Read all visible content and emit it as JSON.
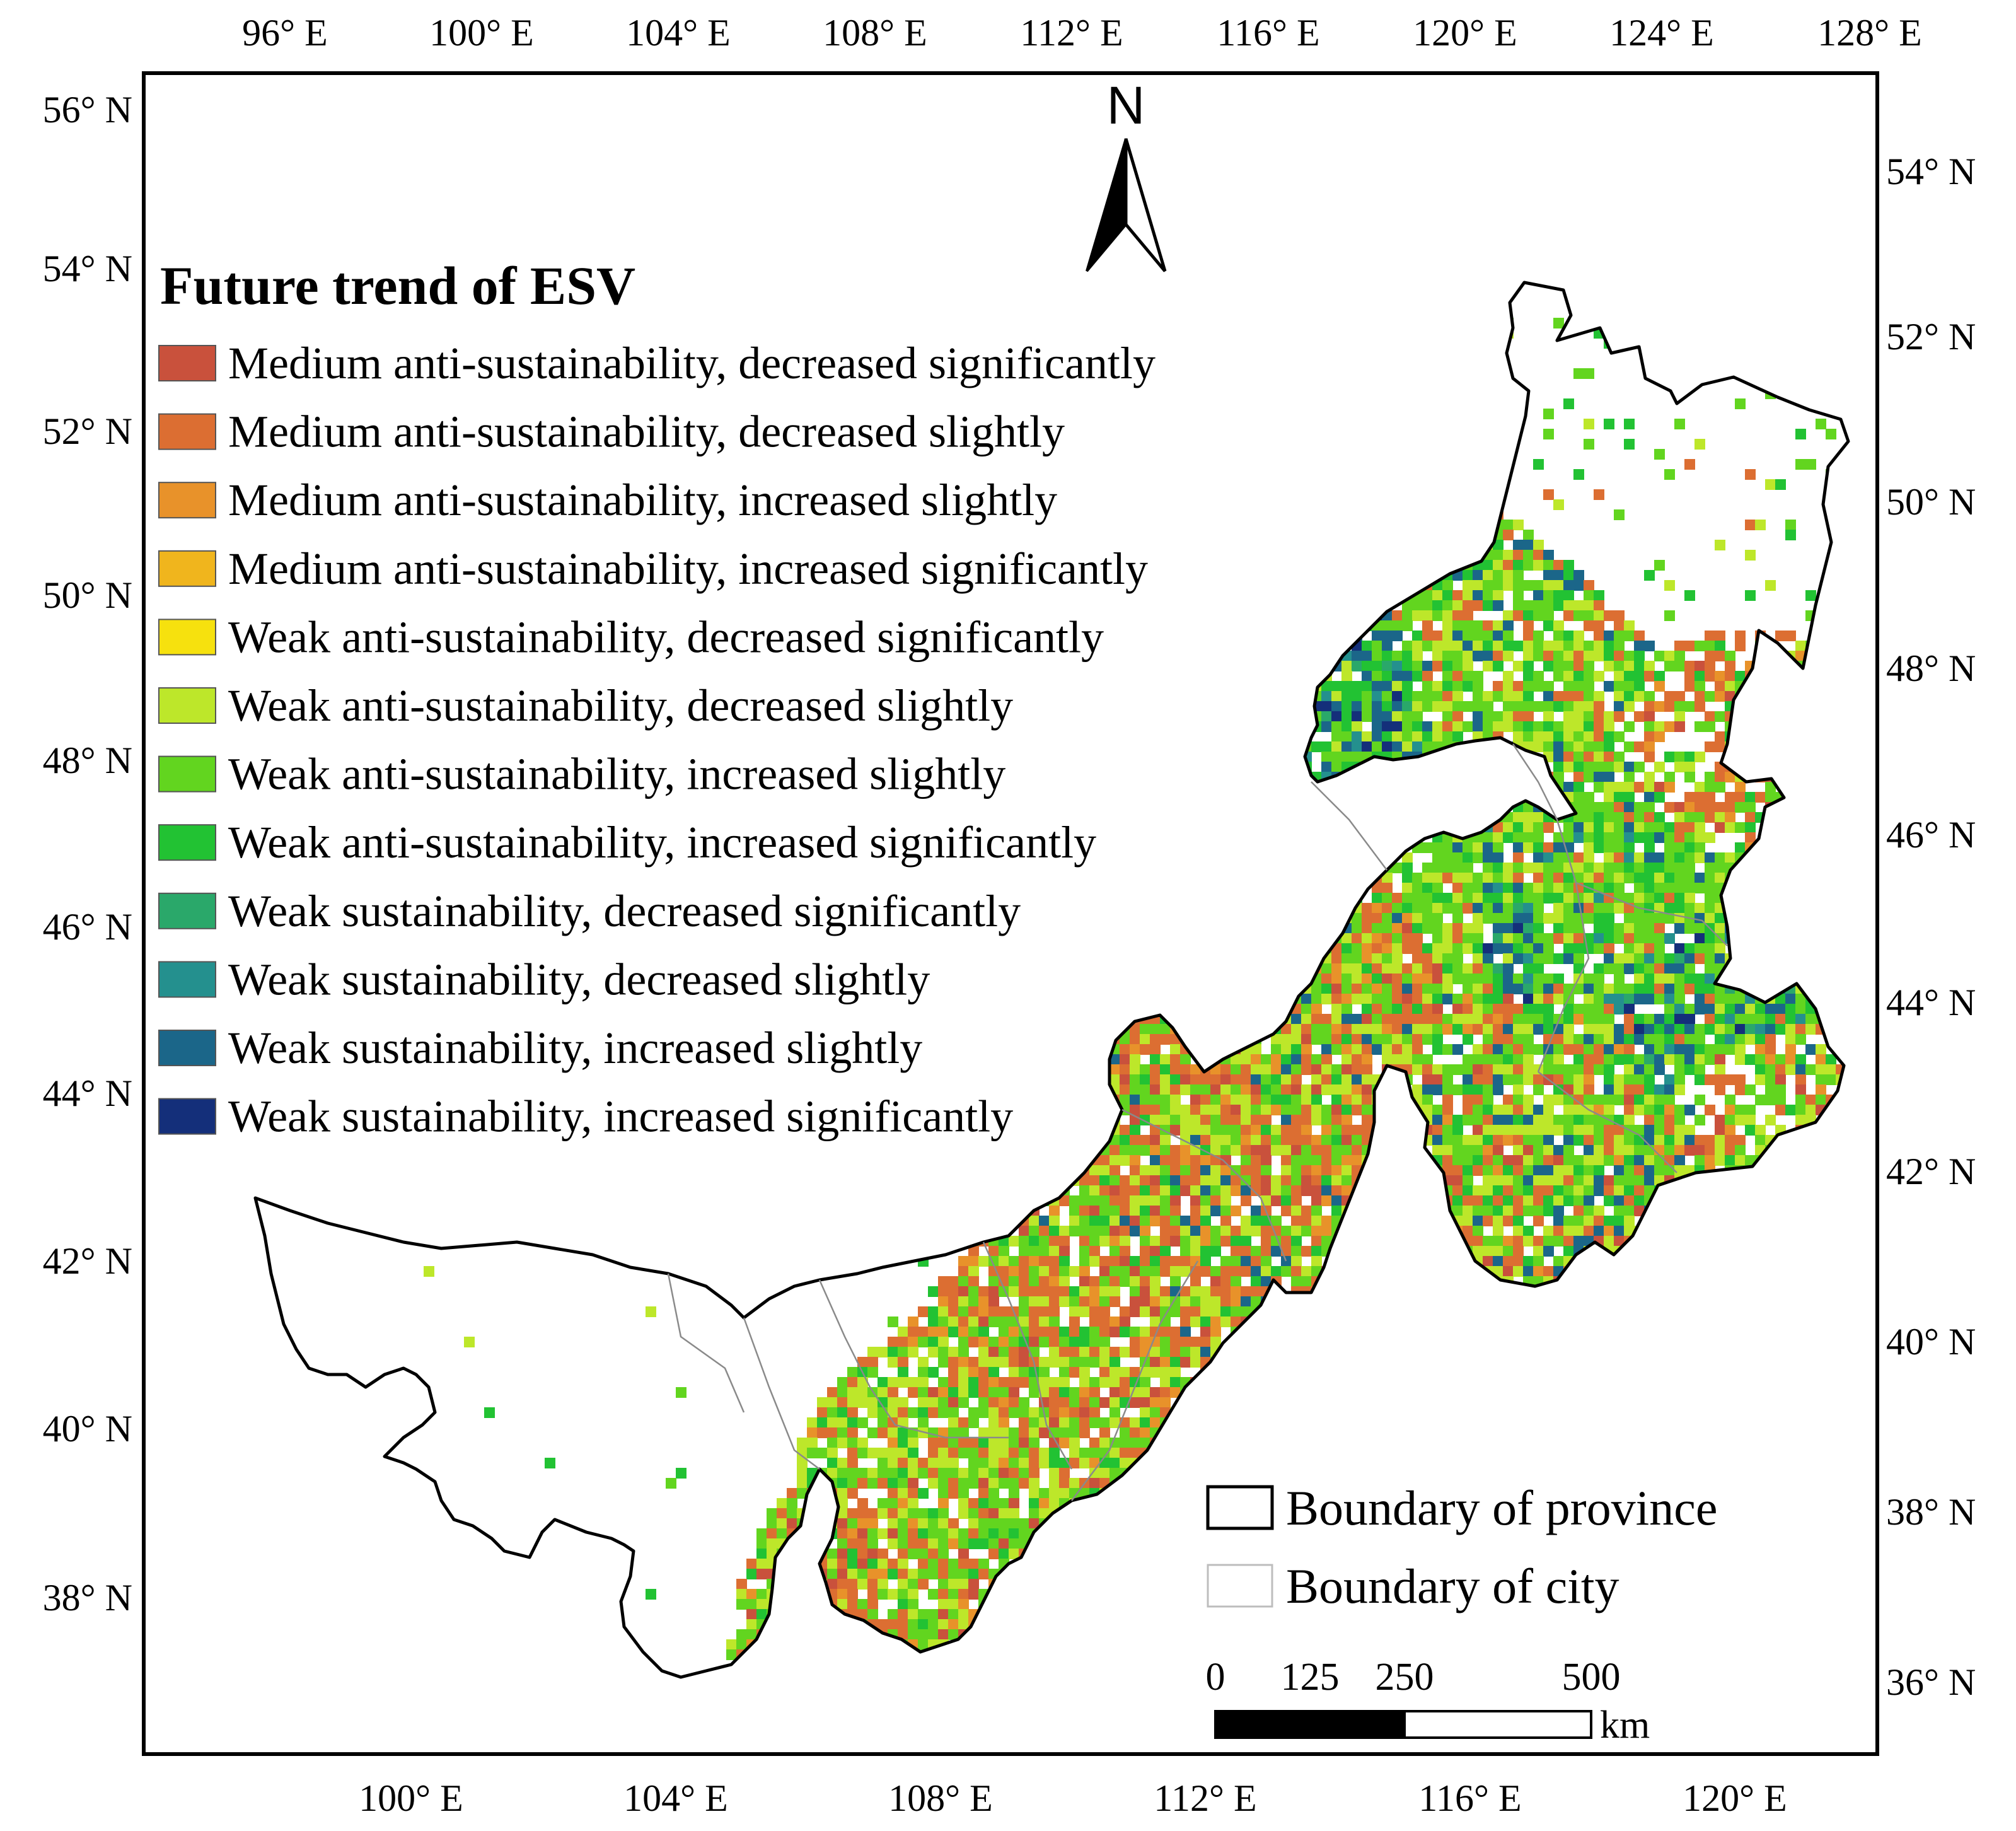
{
  "north_arrow": {
    "label": "N"
  },
  "graticule": {
    "top_ticks": [
      "96° E",
      "100° E",
      "104° E",
      "108° E",
      "112° E",
      "116° E",
      "120° E",
      "124° E",
      "128° E"
    ],
    "bottom_ticks": [
      "100° E",
      "104° E",
      "108° E",
      "112° E",
      "116° E",
      "120° E"
    ],
    "left_ticks": [
      "56° N",
      "54° N",
      "52° N",
      "50° N",
      "48° N",
      "46° N",
      "44° N",
      "42° N",
      "40° N",
      "38° N"
    ],
    "right_ticks": [
      "54° N",
      "52° N",
      "50° N",
      "48° N",
      "46° N",
      "44° N",
      "42° N",
      "40° N",
      "38° N",
      "36° N"
    ]
  },
  "legend": {
    "title": "Future trend of ESV",
    "items": [
      {
        "label": "Medium anti-sustainability, decreased significantly",
        "color": "#c9513c"
      },
      {
        "label": "Medium anti-sustainability, decreased slightly",
        "color": "#dc6e32"
      },
      {
        "label": "Medium anti-sustainability, increased slightly",
        "color": "#e8922a"
      },
      {
        "label": "Medium anti-sustainability, increased significantly",
        "color": "#f0b51d"
      },
      {
        "label": "Weak anti-sustainability, decreased significantly",
        "color": "#f6e10e"
      },
      {
        "label": "Weak anti-sustainability, decreased slightly",
        "color": "#bde72a"
      },
      {
        "label": "Weak anti-sustainability, increased slightly",
        "color": "#62d51f"
      },
      {
        "label": "Weak anti-sustainability, increased significantly",
        "color": "#22c233"
      },
      {
        "label": "Weak sustainability, decreased significantly",
        "color": "#2aa86a"
      },
      {
        "label": "Weak sustainability, decreased slightly",
        "color": "#24908e"
      },
      {
        "label": "Weak sustainability, increased slightly",
        "color": "#1b6689"
      },
      {
        "label": "Weak sustainability, increased significantly",
        "color": "#142f7a"
      }
    ]
  },
  "boundary_legend": {
    "province_label": "Boundary of province",
    "city_label": "Boundary of city"
  },
  "scale_bar": {
    "ticks": [
      "0",
      "125",
      "250",
      "500"
    ],
    "unit": "km"
  }
}
